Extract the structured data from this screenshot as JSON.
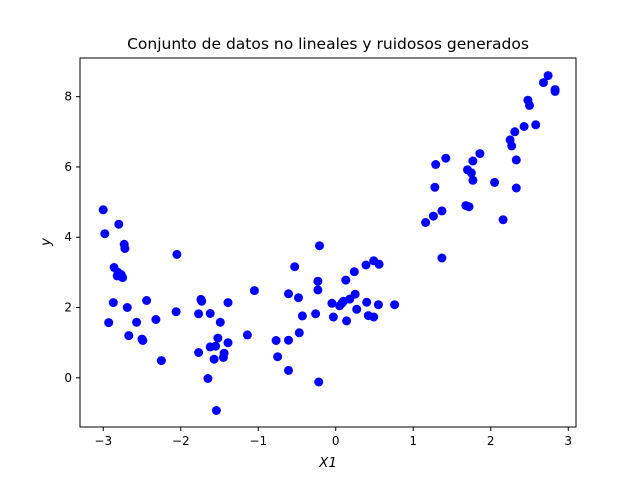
{
  "chart_data": {
    "type": "scatter",
    "title": "Conjunto de datos no lineales y ruidosos generados",
    "xlabel": "X1",
    "ylabel": "y",
    "xlim": [
      -3.3,
      3.1
    ],
    "ylim": [
      -1.4,
      9.1
    ],
    "xticks": [
      -3,
      -2,
      -1,
      0,
      1,
      2,
      3
    ],
    "yticks": [
      0,
      2,
      4,
      6,
      8
    ],
    "grid": false,
    "marker_color": "#0000ff",
    "points": [
      [
        -3.0,
        4.78
      ],
      [
        -2.98,
        4.1
      ],
      [
        -2.93,
        1.57
      ],
      [
        -2.87,
        2.14
      ],
      [
        -2.86,
        3.14
      ],
      [
        -2.82,
        2.9
      ],
      [
        -2.81,
        3.0
      ],
      [
        -2.8,
        4.37
      ],
      [
        -2.77,
        2.94
      ],
      [
        -2.75,
        2.85
      ],
      [
        -2.73,
        3.8
      ],
      [
        -2.72,
        3.68
      ],
      [
        -2.69,
        2.0
      ],
      [
        -2.67,
        1.2
      ],
      [
        -2.57,
        1.58
      ],
      [
        -2.5,
        1.1
      ],
      [
        -2.49,
        1.06
      ],
      [
        -2.44,
        2.2
      ],
      [
        -2.32,
        1.66
      ],
      [
        -2.25,
        0.49
      ],
      [
        -2.06,
        1.88
      ],
      [
        -2.05,
        3.51
      ],
      [
        -1.77,
        0.72
      ],
      [
        -1.77,
        1.82
      ],
      [
        -1.74,
        2.23
      ],
      [
        -1.73,
        2.18
      ],
      [
        -1.65,
        -0.02
      ],
      [
        -1.62,
        0.88
      ],
      [
        -1.62,
        1.83
      ],
      [
        -1.57,
        0.53
      ],
      [
        -1.55,
        0.9
      ],
      [
        -1.54,
        -0.93
      ],
      [
        -1.52,
        1.13
      ],
      [
        -1.49,
        1.58
      ],
      [
        -1.45,
        0.58
      ],
      [
        -1.44,
        0.7
      ],
      [
        -1.39,
        1.0
      ],
      [
        -1.39,
        2.14
      ],
      [
        -1.14,
        1.22
      ],
      [
        -1.05,
        2.48
      ],
      [
        -0.75,
        0.6
      ],
      [
        -0.77,
        1.06
      ],
      [
        -0.61,
        1.07
      ],
      [
        -0.61,
        2.39
      ],
      [
        -0.61,
        0.21
      ],
      [
        -0.53,
        3.16
      ],
      [
        -0.48,
        2.28
      ],
      [
        -0.47,
        1.28
      ],
      [
        -0.43,
        1.76
      ],
      [
        -0.26,
        1.82
      ],
      [
        -0.23,
        2.5
      ],
      [
        -0.23,
        2.75
      ],
      [
        -0.22,
        -0.12
      ],
      [
        -0.21,
        3.76
      ],
      [
        -0.05,
        2.12
      ],
      [
        -0.03,
        1.73
      ],
      [
        0.05,
        2.05
      ],
      [
        0.08,
        2.12
      ],
      [
        0.1,
        2.18
      ],
      [
        0.13,
        2.78
      ],
      [
        0.14,
        1.62
      ],
      [
        0.18,
        2.24
      ],
      [
        0.24,
        3.02
      ],
      [
        0.27,
        1.95
      ],
      [
        0.25,
        2.38
      ],
      [
        0.39,
        3.21
      ],
      [
        0.4,
        2.15
      ],
      [
        0.42,
        1.77
      ],
      [
        0.49,
        3.33
      ],
      [
        0.49,
        1.73
      ],
      [
        0.55,
        2.08
      ],
      [
        0.56,
        3.23
      ],
      [
        0.76,
        2.08
      ],
      [
        1.16,
        4.42
      ],
      [
        1.26,
        4.6
      ],
      [
        1.28,
        5.42
      ],
      [
        1.29,
        6.07
      ],
      [
        1.37,
        4.75
      ],
      [
        1.37,
        3.41
      ],
      [
        1.42,
        6.25
      ],
      [
        1.68,
        4.9
      ],
      [
        1.7,
        5.92
      ],
      [
        1.72,
        4.87
      ],
      [
        1.75,
        5.83
      ],
      [
        1.77,
        5.62
      ],
      [
        1.77,
        6.17
      ],
      [
        1.86,
        6.38
      ],
      [
        2.05,
        5.56
      ],
      [
        2.16,
        4.5
      ],
      [
        2.25,
        6.77
      ],
      [
        2.27,
        6.6
      ],
      [
        2.31,
        7.0
      ],
      [
        2.33,
        6.2
      ],
      [
        2.33,
        5.4
      ],
      [
        2.43,
        7.15
      ],
      [
        2.48,
        7.9
      ],
      [
        2.5,
        7.75
      ],
      [
        2.58,
        7.2
      ],
      [
        2.68,
        8.4
      ],
      [
        2.74,
        8.6
      ],
      [
        2.83,
        8.15
      ],
      [
        2.83,
        8.2
      ]
    ]
  }
}
